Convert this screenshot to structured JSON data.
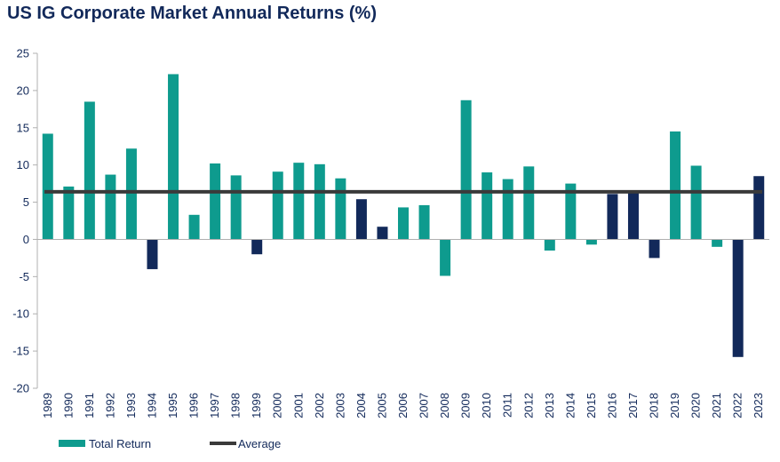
{
  "chart_data": {
    "type": "bar",
    "title": "US IG Corporate Market Annual Returns (%)",
    "xlabel": "",
    "ylabel": "",
    "ylim": [
      -20,
      25
    ],
    "yticks": [
      "25",
      "20",
      "15",
      "10",
      "5",
      "0",
      "-5",
      "-10",
      "-15",
      "-20"
    ],
    "grid": false,
    "legend_position": "bottom-left",
    "categories": [
      "1989",
      "1990",
      "1991",
      "1992",
      "1993",
      "1994",
      "1995",
      "1996",
      "1997",
      "1998",
      "1999",
      "2000",
      "2001",
      "2002",
      "2003",
      "2004",
      "2005",
      "2006",
      "2007",
      "2008",
      "2009",
      "2010",
      "2011",
      "2012",
      "2013",
      "2014",
      "2015",
      "2016",
      "2017",
      "2018",
      "2019",
      "2020",
      "2021",
      "2022",
      "2023"
    ],
    "series": [
      {
        "name": "Total Return",
        "values": [
          14.2,
          7.1,
          18.5,
          8.7,
          12.2,
          -4.0,
          22.2,
          3.3,
          10.2,
          8.6,
          -2.0,
          9.1,
          10.3,
          10.1,
          8.2,
          5.4,
          1.7,
          4.3,
          4.6,
          -4.9,
          18.7,
          9.0,
          8.1,
          9.8,
          -1.5,
          7.5,
          -0.7,
          6.1,
          6.4,
          -2.5,
          14.5,
          9.9,
          -1.0,
          -15.8,
          8.5
        ]
      },
      {
        "name": "Average",
        "type": "line",
        "value": 6.4
      }
    ],
    "bar_colors": [
      "teal",
      "teal",
      "teal",
      "teal",
      "teal",
      "navy",
      "teal",
      "teal",
      "teal",
      "teal",
      "navy",
      "teal",
      "teal",
      "teal",
      "teal",
      "navy",
      "navy",
      "teal",
      "teal",
      "teal",
      "teal",
      "teal",
      "teal",
      "teal",
      "teal",
      "teal",
      "teal",
      "navy",
      "navy",
      "navy",
      "teal",
      "teal",
      "teal",
      "navy",
      "navy"
    ],
    "colors": {
      "teal": "#0e9b8e",
      "navy": "#12295a",
      "average": "#3a3a3a",
      "axis": "#b0b0b0",
      "text": "#12295a"
    }
  }
}
